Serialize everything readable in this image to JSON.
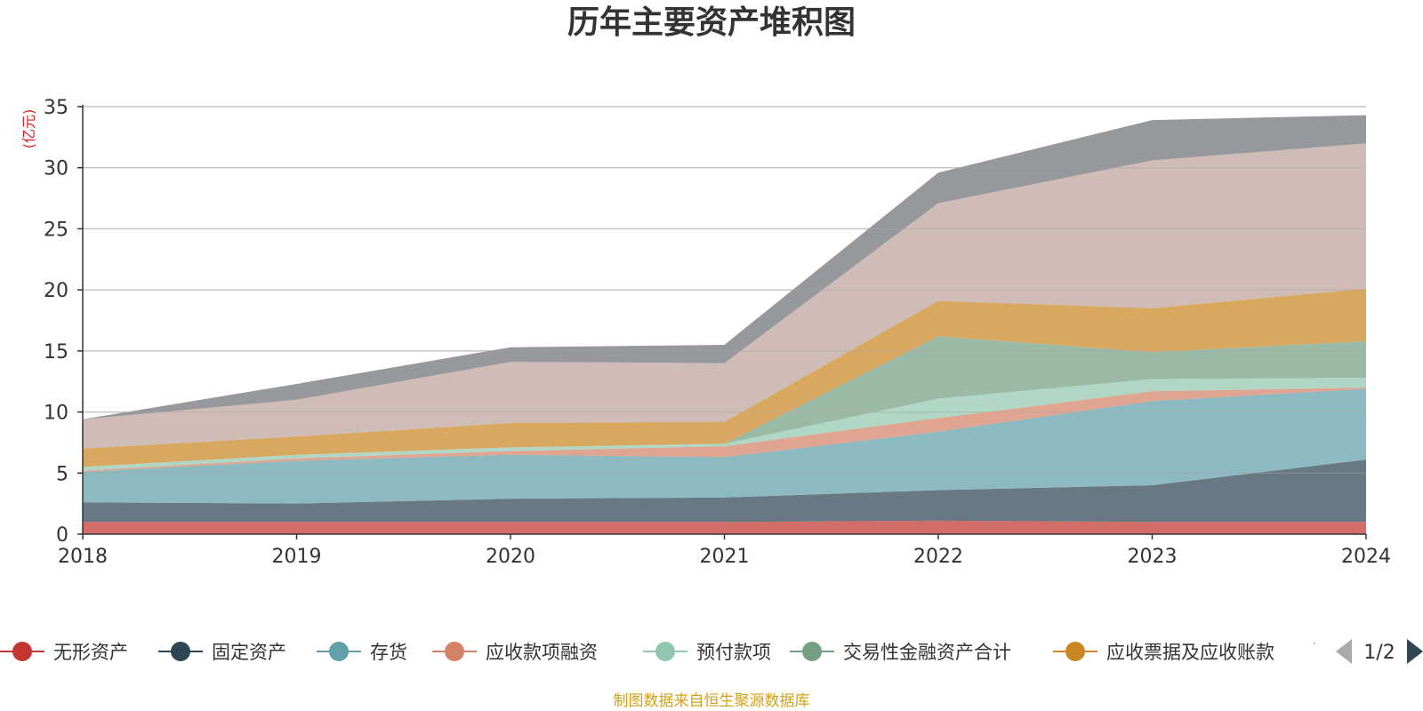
{
  "chart_data": {
    "type": "area",
    "title": "历年主要资产堆积图",
    "ylabel": "(亿元)",
    "xlabel": "",
    "x": [
      "2018",
      "2019",
      "2020",
      "2021",
      "2022",
      "2023",
      "2024"
    ],
    "ylim": [
      0,
      35
    ],
    "yticks": [
      0,
      5,
      10,
      15,
      20,
      25,
      30,
      35
    ],
    "stacked": true,
    "grid": true,
    "legend_position": "bottom",
    "series": [
      {
        "name": "无形资产",
        "color": "#c23531",
        "values": [
          1.0,
          1.0,
          1.0,
          1.0,
          1.1,
          1.0,
          1.0
        ]
      },
      {
        "name": "固定资产",
        "color": "#2f4554",
        "values": [
          1.6,
          1.5,
          1.9,
          2.0,
          2.5,
          3.0,
          5.1
        ]
      },
      {
        "name": "存货",
        "color": "#61a0a8",
        "values": [
          2.5,
          3.5,
          3.6,
          3.3,
          4.8,
          6.9,
          5.8
        ]
      },
      {
        "name": "应收款项融资",
        "color": "#d48265",
        "values": [
          0.1,
          0.2,
          0.3,
          0.9,
          1.1,
          0.8,
          0.1
        ]
      },
      {
        "name": "预付款项",
        "color": "#91c7ae",
        "values": [
          0.3,
          0.3,
          0.3,
          0.2,
          1.6,
          1.0,
          0.8
        ]
      },
      {
        "name": "交易性金融资产合计",
        "color": "#749f83",
        "values": [
          0.0,
          0.0,
          0.0,
          0.0,
          5.1,
          2.2,
          3.0
        ]
      },
      {
        "name": "应收票据及应收账款",
        "color": "#ca8622",
        "values": [
          1.5,
          1.5,
          2.0,
          1.8,
          2.9,
          3.6,
          4.3
        ]
      },
      {
        "name": "",
        "color": "#bda29a",
        "values": [
          2.4,
          3.0,
          5.0,
          4.8,
          8.0,
          12.1,
          11.9
        ]
      },
      {
        "name": "",
        "color": "#6e7074",
        "values": [
          0.0,
          1.3,
          1.2,
          1.5,
          2.5,
          3.3,
          2.3
        ]
      }
    ],
    "legend_visible_count": 7,
    "legend_pager": "1/2"
  },
  "source_note": "制图数据来自恒生聚源数据库"
}
